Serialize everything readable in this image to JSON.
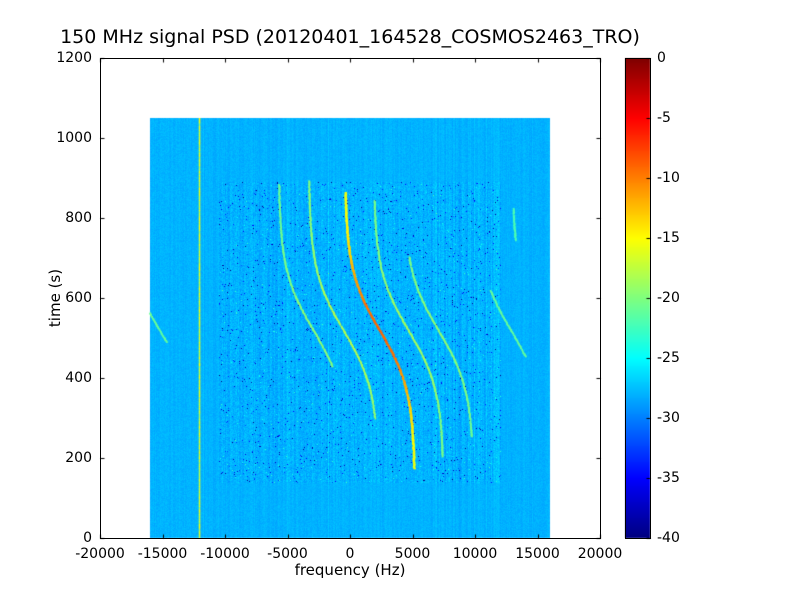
{
  "chart_data": {
    "type": "heatmap",
    "title": "150 MHz signal PSD (20120401_164528_COSMOS2463_TRO)",
    "xlabel": "frequency (Hz)",
    "ylabel": "time (s)",
    "xlim": [
      -20000,
      20000
    ],
    "ylim": [
      0,
      1200
    ],
    "xticks": [
      -20000,
      -15000,
      -10000,
      -5000,
      0,
      5000,
      10000,
      15000,
      20000
    ],
    "yticks": [
      0,
      200,
      400,
      600,
      800,
      1000,
      1200
    ],
    "grid": false,
    "colormap": "jet",
    "colorbar": {
      "min": -40,
      "max": 0,
      "ticks": [
        0,
        -5,
        -10,
        -15,
        -20,
        -25,
        -30,
        -35,
        -40
      ],
      "position": "right"
    },
    "signal_extent": {
      "freq_hz": [
        -16000,
        16000
      ],
      "time_s": [
        0,
        1050
      ]
    },
    "background_level_db": -28,
    "noise_region": {
      "freq_hz": [
        -10500,
        12000
      ],
      "time_s": [
        140,
        890
      ]
    },
    "striped_bands_hz": [
      [
        -11800,
        -10300
      ],
      [
        6000,
        12000
      ]
    ],
    "rfi_line": {
      "freq_hz": -12100,
      "level_db": -17
    },
    "doppler_model": {
      "center_time_s": 520,
      "amplitude_hz": 2800,
      "tau_s": 150
    },
    "traces": [
      {
        "f0_hz": -2900,
        "time_s": [
          430,
          885
        ],
        "level_db": -21,
        "boost_db": 1.5
      },
      {
        "f0_hz": -500,
        "time_s": [
          300,
          895
        ],
        "level_db": -20,
        "boost_db": 2
      },
      {
        "f0_hz": 2400,
        "time_s": [
          175,
          865
        ],
        "level_db": -16,
        "boost_db": 7
      },
      {
        "f0_hz": 4700,
        "time_s": [
          205,
          845
        ],
        "level_db": -20.5,
        "boost_db": 2
      },
      {
        "f0_hz": 7100,
        "time_s": [
          255,
          705
        ],
        "level_db": -21,
        "boost_db": 1.5
      },
      {
        "f0_hz": -15200,
        "time_s": [
          490,
          640
        ],
        "level_db": -21,
        "boost_db": 0
      },
      {
        "f0_hz": 12900,
        "time_s": [
          455,
          620
        ],
        "level_db": -21,
        "boost_db": 0
      },
      {
        "f0_hz": 15800,
        "time_s": [
          745,
          825
        ],
        "level_db": -22,
        "boost_db": 0
      }
    ]
  }
}
